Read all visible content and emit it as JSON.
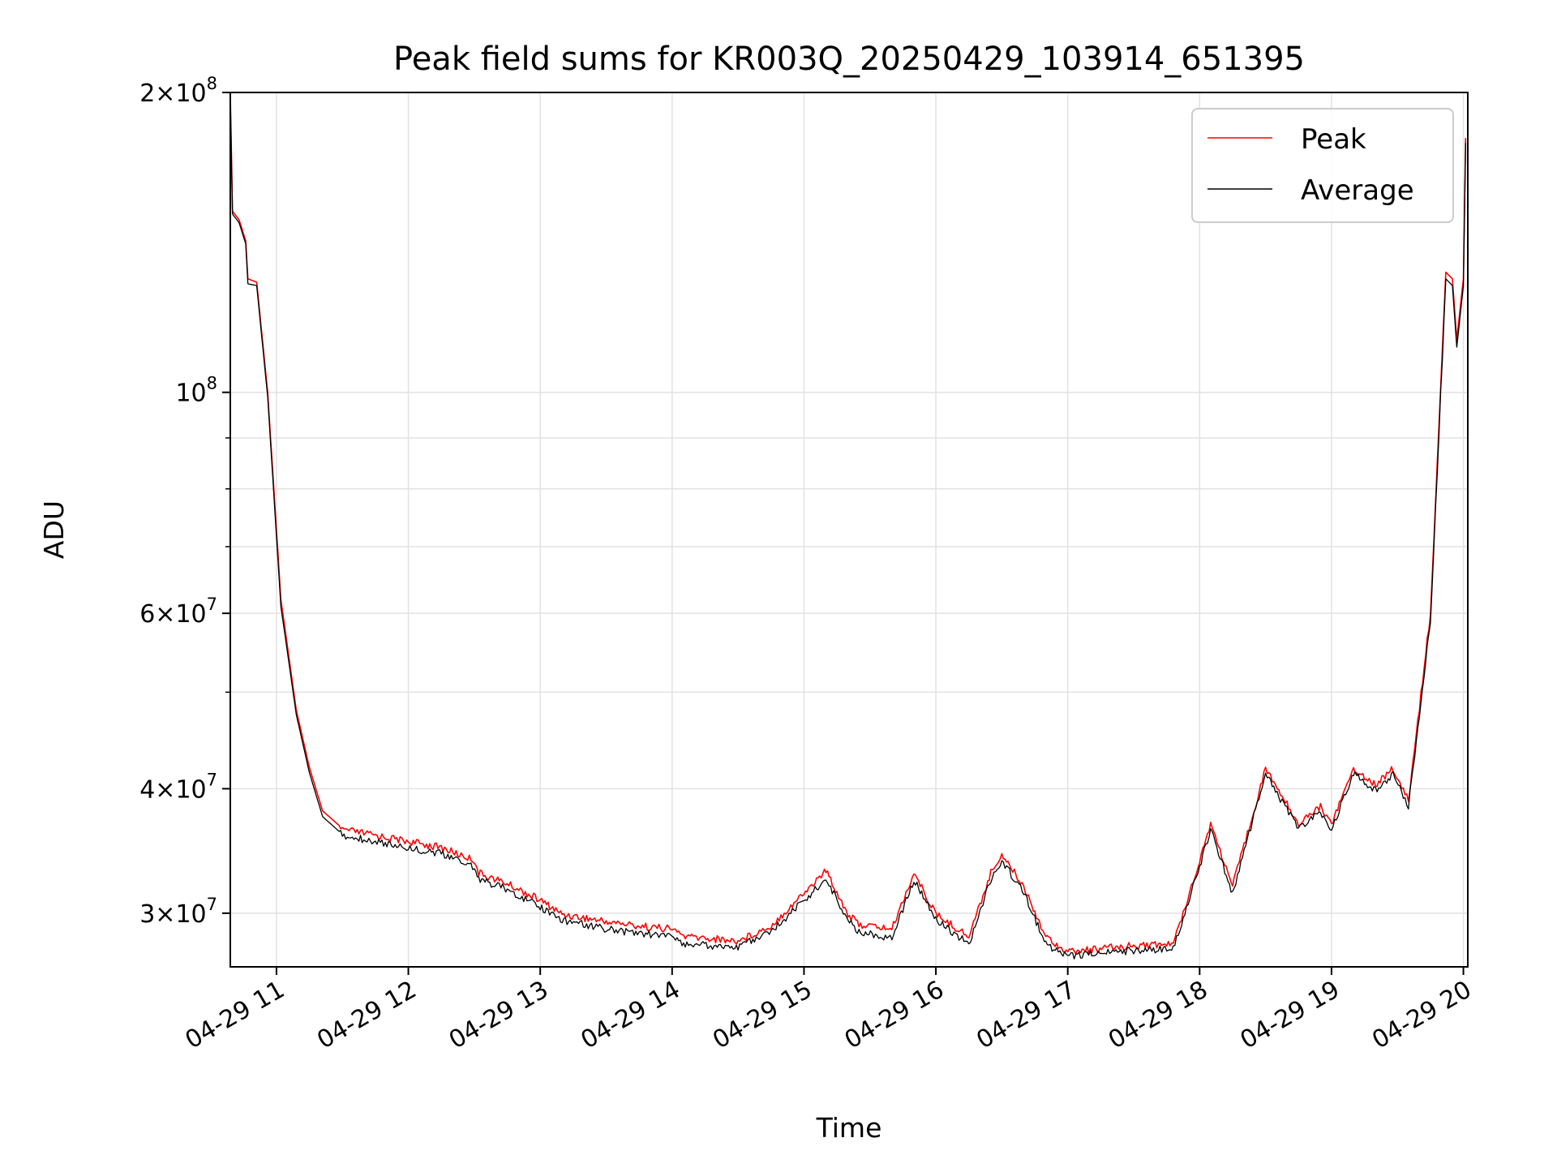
{
  "chart_data": {
    "type": "line",
    "title": "Peak field sums for KR003Q_20250429_103914_651395",
    "xlabel": "Time",
    "ylabel": "ADU",
    "x_scale": "time",
    "y_scale": "log",
    "xlim": [
      "2025-04-29T10:39",
      "2025-04-29T20:02"
    ],
    "ylim": [
      26500000,
      200000000
    ],
    "grid": true,
    "legend_position": "upper right",
    "x_ticks": [
      {
        "value": "2025-04-29T11:00",
        "label": "04-29 11"
      },
      {
        "value": "2025-04-29T12:00",
        "label": "04-29 12"
      },
      {
        "value": "2025-04-29T13:00",
        "label": "04-29 13"
      },
      {
        "value": "2025-04-29T14:00",
        "label": "04-29 14"
      },
      {
        "value": "2025-04-29T15:00",
        "label": "04-29 15"
      },
      {
        "value": "2025-04-29T16:00",
        "label": "04-29 16"
      },
      {
        "value": "2025-04-29T17:00",
        "label": "04-29 17"
      },
      {
        "value": "2025-04-29T18:00",
        "label": "04-29 18"
      },
      {
        "value": "2025-04-29T19:00",
        "label": "04-29 19"
      },
      {
        "value": "2025-04-29T20:00",
        "label": "04-29 20"
      }
    ],
    "y_major_ticks": [
      {
        "value": 200000000,
        "label_mantissa": "2",
        "label_exponent": "8"
      },
      {
        "value": 100000000,
        "label_mantissa": "",
        "label_exponent": "8"
      },
      {
        "value": 60000000,
        "label_mantissa": "6",
        "label_exponent": "7"
      },
      {
        "value": 40000000,
        "label_mantissa": "4",
        "label_exponent": "7"
      },
      {
        "value": 30000000,
        "label_mantissa": "3",
        "label_exponent": "7"
      }
    ],
    "y_minor_ticks": [
      50000000,
      70000000,
      80000000,
      90000000
    ],
    "series": [
      {
        "name": "Peak",
        "color": "#ff0000",
        "points": [
          [
            "2025-04-29T10:39",
            200000000
          ],
          [
            "2025-04-29T10:40",
            152000000
          ],
          [
            "2025-04-29T10:43",
            149000000
          ],
          [
            "2025-04-29T10:46",
            142000000
          ],
          [
            "2025-04-29T10:47",
            130000000
          ],
          [
            "2025-04-29T10:51",
            129000000
          ],
          [
            "2025-04-29T10:56",
            100000000
          ],
          [
            "2025-04-29T11:02",
            62000000
          ],
          [
            "2025-04-29T11:09",
            48000000
          ],
          [
            "2025-04-29T11:15",
            42000000
          ],
          [
            "2025-04-29T11:21",
            38000000
          ],
          [
            "2025-04-29T11:30",
            36500000
          ],
          [
            "2025-04-29T11:45",
            36000000
          ],
          [
            "2025-04-29T12:00",
            35500000
          ],
          [
            "2025-04-29T12:15",
            35000000
          ],
          [
            "2025-04-29T12:30",
            34000000
          ],
          [
            "2025-04-29T12:32",
            33000000
          ],
          [
            "2025-04-29T12:45",
            32200000
          ],
          [
            "2025-04-29T13:00",
            31000000
          ],
          [
            "2025-04-29T13:10",
            30000000
          ],
          [
            "2025-04-29T13:30",
            29500000
          ],
          [
            "2025-04-29T13:45",
            29200000
          ],
          [
            "2025-04-29T14:00",
            29000000
          ],
          [
            "2025-04-29T14:06",
            28500000
          ],
          [
            "2025-04-29T14:30",
            28200000
          ],
          [
            "2025-04-29T14:45",
            29200000
          ],
          [
            "2025-04-29T15:00",
            31500000
          ],
          [
            "2025-04-29T15:10",
            33200000
          ],
          [
            "2025-04-29T15:20",
            30000000
          ],
          [
            "2025-04-29T15:25",
            29300000
          ],
          [
            "2025-04-29T15:40",
            29000000
          ],
          [
            "2025-04-29T15:50",
            33000000
          ],
          [
            "2025-04-29T16:00",
            30000000
          ],
          [
            "2025-04-29T16:15",
            28500000
          ],
          [
            "2025-04-29T16:25",
            33000000
          ],
          [
            "2025-04-29T16:30",
            34500000
          ],
          [
            "2025-04-29T16:40",
            32000000
          ],
          [
            "2025-04-29T16:50",
            28500000
          ],
          [
            "2025-04-29T17:00",
            27500000
          ],
          [
            "2025-04-29T17:30",
            27900000
          ],
          [
            "2025-04-29T17:48",
            28000000
          ],
          [
            "2025-04-29T18:00",
            34000000
          ],
          [
            "2025-04-29T18:05",
            37000000
          ],
          [
            "2025-04-29T18:15",
            32000000
          ],
          [
            "2025-04-29T18:30",
            42000000
          ],
          [
            "2025-04-29T18:45",
            37000000
          ],
          [
            "2025-04-29T18:55",
            38500000
          ],
          [
            "2025-04-29T19:00",
            37000000
          ],
          [
            "2025-04-29T19:10",
            42000000
          ],
          [
            "2025-04-29T19:20",
            40500000
          ],
          [
            "2025-04-29T19:28",
            42000000
          ],
          [
            "2025-04-29T19:35",
            39000000
          ],
          [
            "2025-04-29T19:45",
            60000000
          ],
          [
            "2025-04-29T19:52",
            132000000
          ],
          [
            "2025-04-29T19:55",
            130000000
          ],
          [
            "2025-04-29T19:57",
            113000000
          ],
          [
            "2025-04-29T20:00",
            130000000
          ],
          [
            "2025-04-29T20:01",
            180000000
          ]
        ]
      },
      {
        "name": "Average",
        "color": "#000000",
        "points": [
          [
            "2025-04-29T10:39",
            198000000
          ],
          [
            "2025-04-29T10:40",
            151000000
          ],
          [
            "2025-04-29T10:43",
            148000000
          ],
          [
            "2025-04-29T10:46",
            141000000
          ],
          [
            "2025-04-29T10:47",
            128500000
          ],
          [
            "2025-04-29T10:51",
            128000000
          ],
          [
            "2025-04-29T10:56",
            99000000
          ],
          [
            "2025-04-29T11:02",
            61000000
          ],
          [
            "2025-04-29T11:09",
            47500000
          ],
          [
            "2025-04-29T11:15",
            41500000
          ],
          [
            "2025-04-29T11:21",
            37500000
          ],
          [
            "2025-04-29T11:30",
            36000000
          ],
          [
            "2025-04-29T11:45",
            35500000
          ],
          [
            "2025-04-29T12:00",
            35000000
          ],
          [
            "2025-04-29T12:15",
            34500000
          ],
          [
            "2025-04-29T12:30",
            33500000
          ],
          [
            "2025-04-29T12:32",
            32500000
          ],
          [
            "2025-04-29T12:45",
            31800000
          ],
          [
            "2025-04-29T13:00",
            30500000
          ],
          [
            "2025-04-29T13:10",
            29600000
          ],
          [
            "2025-04-29T13:30",
            29000000
          ],
          [
            "2025-04-29T13:45",
            28700000
          ],
          [
            "2025-04-29T14:00",
            28500000
          ],
          [
            "2025-04-29T14:06",
            28000000
          ],
          [
            "2025-04-29T14:30",
            27800000
          ],
          [
            "2025-04-29T14:45",
            28800000
          ],
          [
            "2025-04-29T15:00",
            31000000
          ],
          [
            "2025-04-29T15:10",
            32500000
          ],
          [
            "2025-04-29T15:20",
            29600000
          ],
          [
            "2025-04-29T15:25",
            28800000
          ],
          [
            "2025-04-29T15:40",
            28400000
          ],
          [
            "2025-04-29T15:50",
            32500000
          ],
          [
            "2025-04-29T16:00",
            29600000
          ],
          [
            "2025-04-29T16:15",
            28000000
          ],
          [
            "2025-04-29T16:25",
            32500000
          ],
          [
            "2025-04-29T16:30",
            34000000
          ],
          [
            "2025-04-29T16:40",
            31500000
          ],
          [
            "2025-04-29T16:50",
            28000000
          ],
          [
            "2025-04-29T17:00",
            27200000
          ],
          [
            "2025-04-29T17:30",
            27600000
          ],
          [
            "2025-04-29T17:48",
            27700000
          ],
          [
            "2025-04-29T18:00",
            33500000
          ],
          [
            "2025-04-29T18:05",
            36500000
          ],
          [
            "2025-04-29T18:15",
            31500000
          ],
          [
            "2025-04-29T18:30",
            41500000
          ],
          [
            "2025-04-29T18:45",
            36500000
          ],
          [
            "2025-04-29T18:55",
            38000000
          ],
          [
            "2025-04-29T19:00",
            36500000
          ],
          [
            "2025-04-29T19:10",
            41500000
          ],
          [
            "2025-04-29T19:20",
            40000000
          ],
          [
            "2025-04-29T19:28",
            41500000
          ],
          [
            "2025-04-29T19:35",
            38500000
          ],
          [
            "2025-04-29T19:45",
            59000000
          ],
          [
            "2025-04-29T19:52",
            130000000
          ],
          [
            "2025-04-29T19:55",
            128000000
          ],
          [
            "2025-04-29T19:57",
            111000000
          ],
          [
            "2025-04-29T20:00",
            128000000
          ],
          [
            "2025-04-29T20:01",
            178000000
          ]
        ]
      }
    ]
  }
}
